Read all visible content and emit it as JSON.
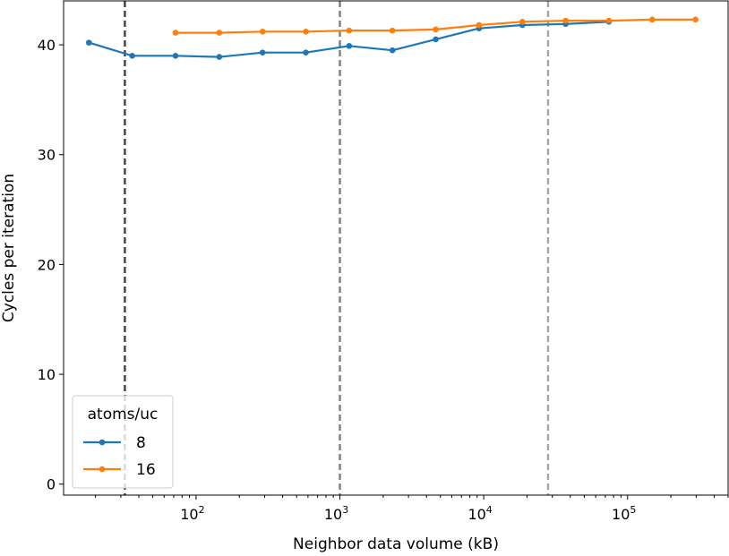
{
  "chart_data": {
    "type": "line",
    "xlabel": "Neighbor data volume (kB)",
    "ylabel": "Cycles per iteration",
    "xscale": "log",
    "xlim": [
      12,
      500000
    ],
    "ylim": [
      -1,
      44
    ],
    "x_ticks": [
      {
        "value": 100,
        "base": "10",
        "exp": "2"
      },
      {
        "value": 1000,
        "base": "10",
        "exp": "3"
      },
      {
        "value": 10000,
        "base": "10",
        "exp": "4"
      },
      {
        "value": 100000,
        "base": "10",
        "exp": "5"
      }
    ],
    "y_ticks": [
      {
        "value": 0,
        "label": "0"
      },
      {
        "value": 10,
        "label": "10"
      },
      {
        "value": 20,
        "label": "20"
      },
      {
        "value": 30,
        "label": "30"
      },
      {
        "value": 40,
        "label": "40"
      }
    ],
    "vlines": [
      {
        "x": 32,
        "color": "#404040"
      },
      {
        "x": 1000,
        "color": "#7f7f7f"
      },
      {
        "x": 28000,
        "color": "#a6a6a6"
      }
    ],
    "legend": {
      "title": "atoms/uc",
      "location": "lower-left"
    },
    "series": [
      {
        "name": "8",
        "color": "#1f77b4",
        "points": [
          [
            18,
            40.2
          ],
          [
            36,
            39.0
          ],
          [
            72,
            39.0
          ],
          [
            145,
            38.9
          ],
          [
            290,
            39.3
          ],
          [
            580,
            39.3
          ],
          [
            1160,
            39.9
          ],
          [
            2320,
            39.5
          ],
          [
            4640,
            40.5
          ],
          [
            9280,
            41.5
          ],
          [
            18560,
            41.8
          ],
          [
            37120,
            41.9
          ],
          [
            74240,
            42.1
          ]
        ]
      },
      {
        "name": "16",
        "color": "#ff7f0e",
        "points": [
          [
            72,
            41.1
          ],
          [
            145,
            41.1
          ],
          [
            290,
            41.2
          ],
          [
            580,
            41.2
          ],
          [
            1160,
            41.3
          ],
          [
            2320,
            41.3
          ],
          [
            4640,
            41.4
          ],
          [
            9280,
            41.8
          ],
          [
            18560,
            42.1
          ],
          [
            37120,
            42.2
          ],
          [
            74240,
            42.2
          ],
          [
            148480,
            42.3
          ],
          [
            296960,
            42.3
          ]
        ]
      }
    ]
  }
}
